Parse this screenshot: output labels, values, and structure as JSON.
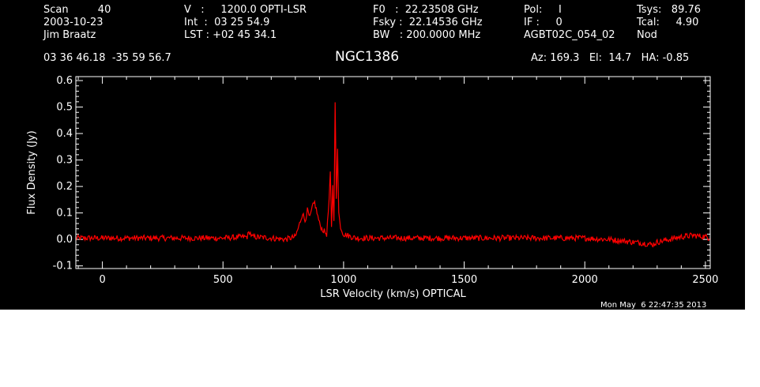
{
  "header": {
    "col1": {
      "line1": "Scan         40",
      "line2": "2003-10-23",
      "line3": "Jim Braatz"
    },
    "col2": {
      "line1": "V   :     1200.0 OPTI-LSR",
      "line2": "Int  :  03 25 54.9",
      "line3": "LST : +02 45 34.1"
    },
    "col3": {
      "line1": "F0   :  22.23508 GHz",
      "line2": "Fsky :  22.14536 GHz",
      "line3": "BW   : 200.0000 MHz"
    },
    "col4": {
      "line1": "Pol:     I",
      "line2": "IF :     0",
      "line3": "AGBT02C_054_02"
    },
    "col5": {
      "line1": "Tsys:   89.76",
      "line2": "Tcal:     4.90",
      "line3": "Nod"
    },
    "coords": "03 36 46.18  -35 59 56.7",
    "source": "NGC1386",
    "azel": "Az: 169.3   El:  14.7   HA: -0.85",
    "timestamp": "Mon May  6 22:47:35 2013"
  },
  "chart_data": {
    "type": "line",
    "xlabel": "LSR Velocity (km/s) OPTICAL",
    "ylabel": "Flux Density (Jy)",
    "xlim": [
      -110,
      2520
    ],
    "ylim": [
      -0.11,
      0.615
    ],
    "xticks": [
      0,
      500,
      1000,
      1500,
      2000,
      2500
    ],
    "xtick_labels": [
      "0",
      "500",
      "1000",
      "1500",
      "2000",
      "2500"
    ],
    "yticks": [
      -0.1,
      0.0,
      0.1,
      0.2,
      0.3,
      0.4,
      0.5,
      0.6
    ],
    "ytick_labels": [
      "-0.1",
      "0.0",
      "0.1",
      "0.2",
      "0.3",
      "0.4",
      "0.5",
      "0.6"
    ],
    "grid": false,
    "line_color": "#ff0000",
    "axis_color": "#ffffff",
    "background": "#000000",
    "series": [
      {
        "x": [
          -110,
          0,
          100,
          200,
          300,
          400,
          500,
          600,
          610,
          620,
          700,
          760,
          800,
          815,
          830,
          840,
          850,
          860,
          870,
          880,
          890,
          900,
          910,
          920,
          930,
          940,
          945,
          950,
          955,
          960,
          965,
          970,
          975,
          980,
          985,
          990,
          1000,
          1050,
          1100,
          1200,
          1300,
          1400,
          1500,
          1600,
          1700,
          1800,
          1900,
          2000,
          2050,
          2100,
          2150,
          2200,
          2250,
          2280,
          2300,
          2350,
          2400,
          2450,
          2500,
          2520
        ],
        "y": [
          0.005,
          0.005,
          0.005,
          0.005,
          0.005,
          0.005,
          0.005,
          0.01,
          0.03,
          0.01,
          0.005,
          0.0,
          0.01,
          0.05,
          0.1,
          0.07,
          0.11,
          0.08,
          0.12,
          0.14,
          0.1,
          0.06,
          0.04,
          0.03,
          0.02,
          0.15,
          0.25,
          0.05,
          0.2,
          0.08,
          0.52,
          0.15,
          0.35,
          0.1,
          0.06,
          0.04,
          0.02,
          0.005,
          0.005,
          0.005,
          0.005,
          0.005,
          0.005,
          0.005,
          0.005,
          0.005,
          0.005,
          0.005,
          0.002,
          0.0,
          -0.005,
          -0.01,
          -0.015,
          -0.02,
          -0.01,
          0.0,
          0.01,
          0.015,
          0.01,
          0.005
        ]
      }
    ]
  }
}
